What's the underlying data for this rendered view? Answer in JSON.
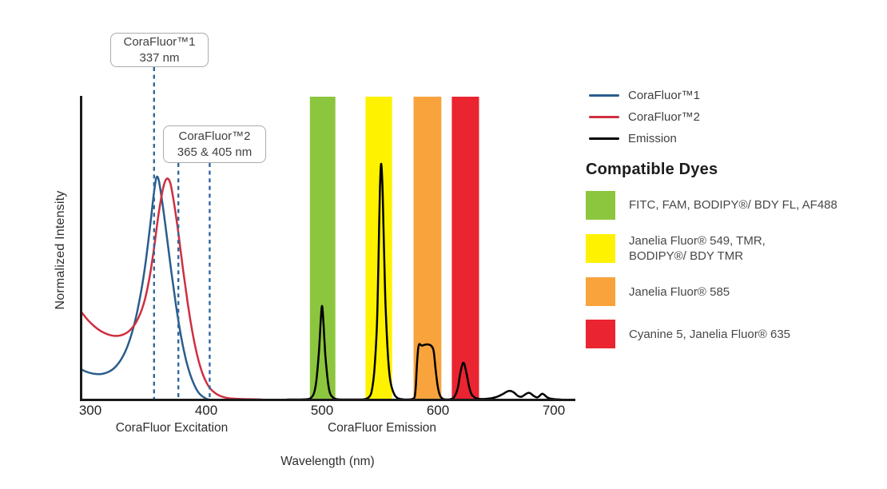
{
  "chart_data": {
    "type": "line",
    "title": "",
    "xlabel": "Wavelength (nm)",
    "ylabel": "Normalized Intensity",
    "x_ticks": [
      300,
      400,
      500,
      600,
      700
    ],
    "xlim": [
      292,
      718
    ],
    "ylim": [
      0,
      1.05
    ],
    "grid": false,
    "legend_position": "right",
    "section_labels": {
      "excitation": "CoraFluor Excitation",
      "emission": "CoraFluor Emission"
    },
    "annotations": [
      {
        "label_title": "CoraFluor™1",
        "label_value": "337 nm",
        "marker_lines_nm": [
          355
        ]
      },
      {
        "label_title": "CoraFluor™2",
        "label_value": "365 & 405 nm",
        "marker_lines_nm": [
          376,
          403
        ]
      }
    ],
    "marker_line_color": "#31689c",
    "bands": [
      {
        "color_name": "green",
        "color": "#8cc63e",
        "nm_range": [
          489.5,
          511.5
        ]
      },
      {
        "color_name": "yellow",
        "color": "#fff200",
        "nm_range": [
          537.5,
          560.5
        ]
      },
      {
        "color_name": "orange",
        "color": "#f8a33c",
        "nm_range": [
          579.0,
          603.0
        ]
      },
      {
        "color_name": "red",
        "color": "#ea2430",
        "nm_range": [
          612.0,
          635.5
        ]
      }
    ],
    "series": [
      {
        "name": "CoraFluor™1",
        "color": "#2a5d8c",
        "points": [
          [
            292,
            0.1
          ],
          [
            297,
            0.091
          ],
          [
            303,
            0.085
          ],
          [
            309,
            0.084
          ],
          [
            315,
            0.09
          ],
          [
            321,
            0.105
          ],
          [
            327,
            0.135
          ],
          [
            333,
            0.185
          ],
          [
            339,
            0.265
          ],
          [
            344,
            0.36
          ],
          [
            348,
            0.46
          ],
          [
            352,
            0.585
          ],
          [
            355,
            0.685
          ],
          [
            357,
            0.732
          ],
          [
            359,
            0.725
          ],
          [
            362,
            0.655
          ],
          [
            366,
            0.54
          ],
          [
            370,
            0.42
          ],
          [
            374,
            0.31
          ],
          [
            378,
            0.215
          ],
          [
            382,
            0.14
          ],
          [
            386,
            0.085
          ],
          [
            390,
            0.046
          ],
          [
            394,
            0.02
          ],
          [
            398,
            0.007
          ],
          [
            401,
            0.001
          ],
          [
            403,
            0
          ]
        ]
      },
      {
        "name": "CoraFluor™2",
        "color": "#ce2f40",
        "points": [
          [
            292,
            0.29
          ],
          [
            298,
            0.262
          ],
          [
            304,
            0.24
          ],
          [
            310,
            0.224
          ],
          [
            316,
            0.214
          ],
          [
            322,
            0.21
          ],
          [
            328,
            0.214
          ],
          [
            334,
            0.228
          ],
          [
            340,
            0.258
          ],
          [
            346,
            0.315
          ],
          [
            351,
            0.4
          ],
          [
            355,
            0.5
          ],
          [
            359,
            0.615
          ],
          [
            363,
            0.7
          ],
          [
            366,
            0.729
          ],
          [
            369,
            0.715
          ],
          [
            372,
            0.655
          ],
          [
            376,
            0.55
          ],
          [
            380,
            0.43
          ],
          [
            384,
            0.32
          ],
          [
            388,
            0.225
          ],
          [
            392,
            0.15
          ],
          [
            396,
            0.095
          ],
          [
            400,
            0.058
          ],
          [
            404,
            0.034
          ],
          [
            409,
            0.018
          ],
          [
            414,
            0.009
          ],
          [
            420,
            0.004
          ],
          [
            428,
            0.002
          ],
          [
            437,
            0.001
          ],
          [
            448,
            0
          ]
        ]
      },
      {
        "name": "Emission",
        "color": "#000000",
        "points": [
          [
            470,
            0
          ],
          [
            480,
            0
          ],
          [
            487,
            0.001
          ],
          [
            490,
            0.004
          ],
          [
            493,
            0.02
          ],
          [
            495,
            0.06
          ],
          [
            497,
            0.14
          ],
          [
            498,
            0.2
          ],
          [
            499,
            0.27
          ],
          [
            500,
            0.309
          ],
          [
            501,
            0.27
          ],
          [
            502,
            0.2
          ],
          [
            503,
            0.14
          ],
          [
            505,
            0.06
          ],
          [
            507,
            0.02
          ],
          [
            510,
            0.005
          ],
          [
            513,
            0.001
          ],
          [
            518,
            0
          ],
          [
            526,
            0
          ],
          [
            533,
            0
          ],
          [
            538,
            0.002
          ],
          [
            541,
            0.01
          ],
          [
            543,
            0.03
          ],
          [
            545,
            0.09
          ],
          [
            547,
            0.21
          ],
          [
            548,
            0.33
          ],
          [
            549,
            0.52
          ],
          [
            550,
            0.7
          ],
          [
            551,
            0.778
          ],
          [
            552,
            0.72
          ],
          [
            553,
            0.58
          ],
          [
            554,
            0.42
          ],
          [
            555,
            0.29
          ],
          [
            557,
            0.14
          ],
          [
            559,
            0.06
          ],
          [
            562,
            0.02
          ],
          [
            565,
            0.005
          ],
          [
            569,
            0.001
          ],
          [
            574,
            0
          ],
          [
            578,
            0.002
          ],
          [
            580,
            0.01
          ],
          [
            581,
            0.05
          ],
          [
            582,
            0.12
          ],
          [
            583,
            0.168
          ],
          [
            584,
            0.183
          ],
          [
            586,
            0.178
          ],
          [
            588,
            0.18
          ],
          [
            591,
            0.182
          ],
          [
            594,
            0.178
          ],
          [
            596,
            0.166
          ],
          [
            597,
            0.14
          ],
          [
            598,
            0.1
          ],
          [
            600,
            0.04
          ],
          [
            602,
            0.012
          ],
          [
            604,
            0.003
          ],
          [
            607,
            0
          ],
          [
            611,
            0.001
          ],
          [
            614,
            0.008
          ],
          [
            617,
            0.035
          ],
          [
            619,
            0.08
          ],
          [
            621,
            0.115
          ],
          [
            622,
            0.121
          ],
          [
            623,
            0.115
          ],
          [
            625,
            0.08
          ],
          [
            627,
            0.042
          ],
          [
            629,
            0.018
          ],
          [
            632,
            0.006
          ],
          [
            636,
            0.002
          ],
          [
            641,
            0.002
          ],
          [
            646,
            0.004
          ],
          [
            651,
            0.009
          ],
          [
            656,
            0.018
          ],
          [
            660,
            0.027
          ],
          [
            663,
            0.028
          ],
          [
            666,
            0.022
          ],
          [
            669,
            0.012
          ],
          [
            672,
            0.009
          ],
          [
            675,
            0.016
          ],
          [
            678,
            0.022
          ],
          [
            680,
            0.02
          ],
          [
            683,
            0.011
          ],
          [
            686,
            0.007
          ],
          [
            688,
            0.013
          ],
          [
            690,
            0.019
          ],
          [
            692,
            0.015
          ],
          [
            694,
            0.008
          ],
          [
            697,
            0.003
          ],
          [
            701,
            0.001
          ],
          [
            706,
            0
          ]
        ]
      }
    ]
  },
  "legend": {
    "items": [
      {
        "label": "CoraFluor™1",
        "color": "#2a5d8c"
      },
      {
        "label": "CoraFluor™2",
        "color": "#ce2f40"
      },
      {
        "label": "Emission",
        "color": "#000000"
      }
    ]
  },
  "compatible_dyes": {
    "heading": "Compatible Dyes",
    "items": [
      {
        "color": "#8cc63e",
        "lines": [
          "FITC, FAM, BODIPY®/ BDY FL, AF488"
        ]
      },
      {
        "color": "#fff200",
        "lines": [
          "Janelia Fluor® 549, TMR,",
          "BODIPY®/ BDY TMR"
        ]
      },
      {
        "color": "#f8a33c",
        "lines": [
          "Janelia Fluor® 585"
        ]
      },
      {
        "color": "#ea2430",
        "lines": [
          "Cyanine 5, Janelia Fluor® 635"
        ]
      }
    ]
  }
}
